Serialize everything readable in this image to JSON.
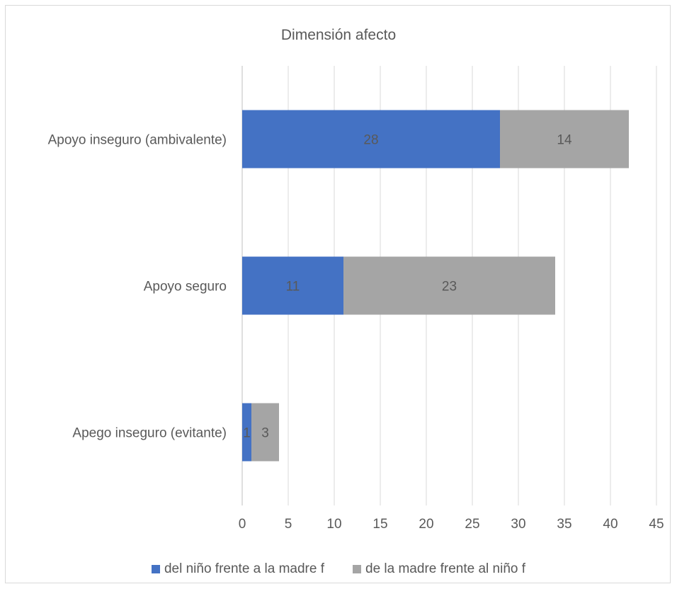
{
  "chart_data": {
    "type": "bar",
    "orientation": "horizontal",
    "stacked": true,
    "title": "Dimensión afecto",
    "categories": [
      "Apoyo inseguro (ambivalente)",
      "Apoyo seguro",
      "Apego inseguro (evitante)"
    ],
    "series": [
      {
        "name": "del niño frente a la madre f",
        "values": [
          28,
          11,
          1
        ],
        "color": "#4472c4"
      },
      {
        "name": "de la madre frente al niño f",
        "values": [
          14,
          23,
          3
        ],
        "color": "#a5a5a5"
      }
    ],
    "xlim": [
      0,
      45
    ],
    "xticks": [
      "0",
      "5",
      "10",
      "15",
      "20",
      "25",
      "30",
      "35",
      "40",
      "45"
    ],
    "grid": true,
    "data_labels": true,
    "legend_position": "bottom"
  }
}
